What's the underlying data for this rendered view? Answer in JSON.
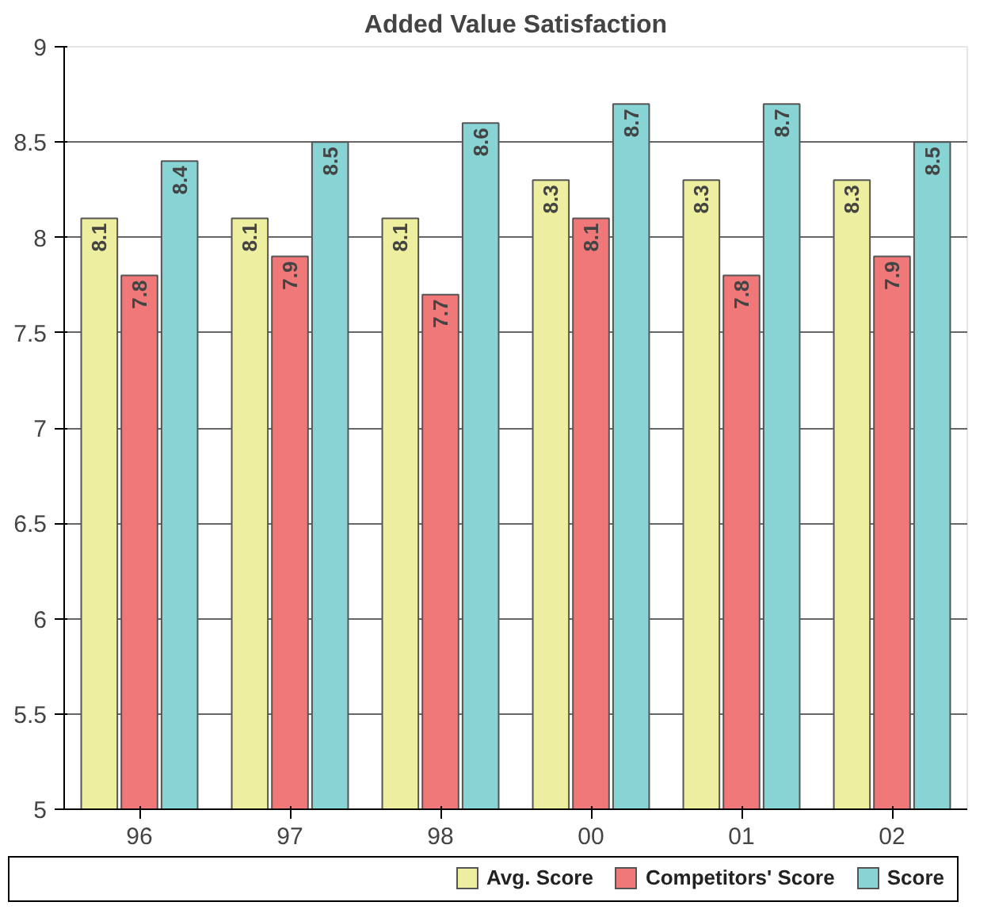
{
  "chart_data": {
    "type": "bar",
    "title": "Added Value Satisfaction",
    "categories": [
      "96",
      "97",
      "98",
      "00",
      "01",
      "02"
    ],
    "series": [
      {
        "name": "Avg. Score",
        "color": "#eeeea0",
        "values": [
          8.1,
          8.1,
          8.1,
          8.3,
          8.3,
          8.3
        ]
      },
      {
        "name": "Competitors' Score",
        "color": "#f07878",
        "values": [
          7.8,
          7.9,
          7.7,
          8.1,
          7.8,
          7.9
        ]
      },
      {
        "name": "Score",
        "color": "#88d4d4",
        "values": [
          8.4,
          8.5,
          8.6,
          8.7,
          8.7,
          8.5
        ]
      }
    ],
    "ylim": [
      5,
      9
    ],
    "yticks": [
      5,
      5.5,
      6,
      6.5,
      7,
      7.5,
      8,
      8.5,
      9
    ],
    "grid": "y",
    "legend": "bottom right",
    "data_labels": true
  }
}
